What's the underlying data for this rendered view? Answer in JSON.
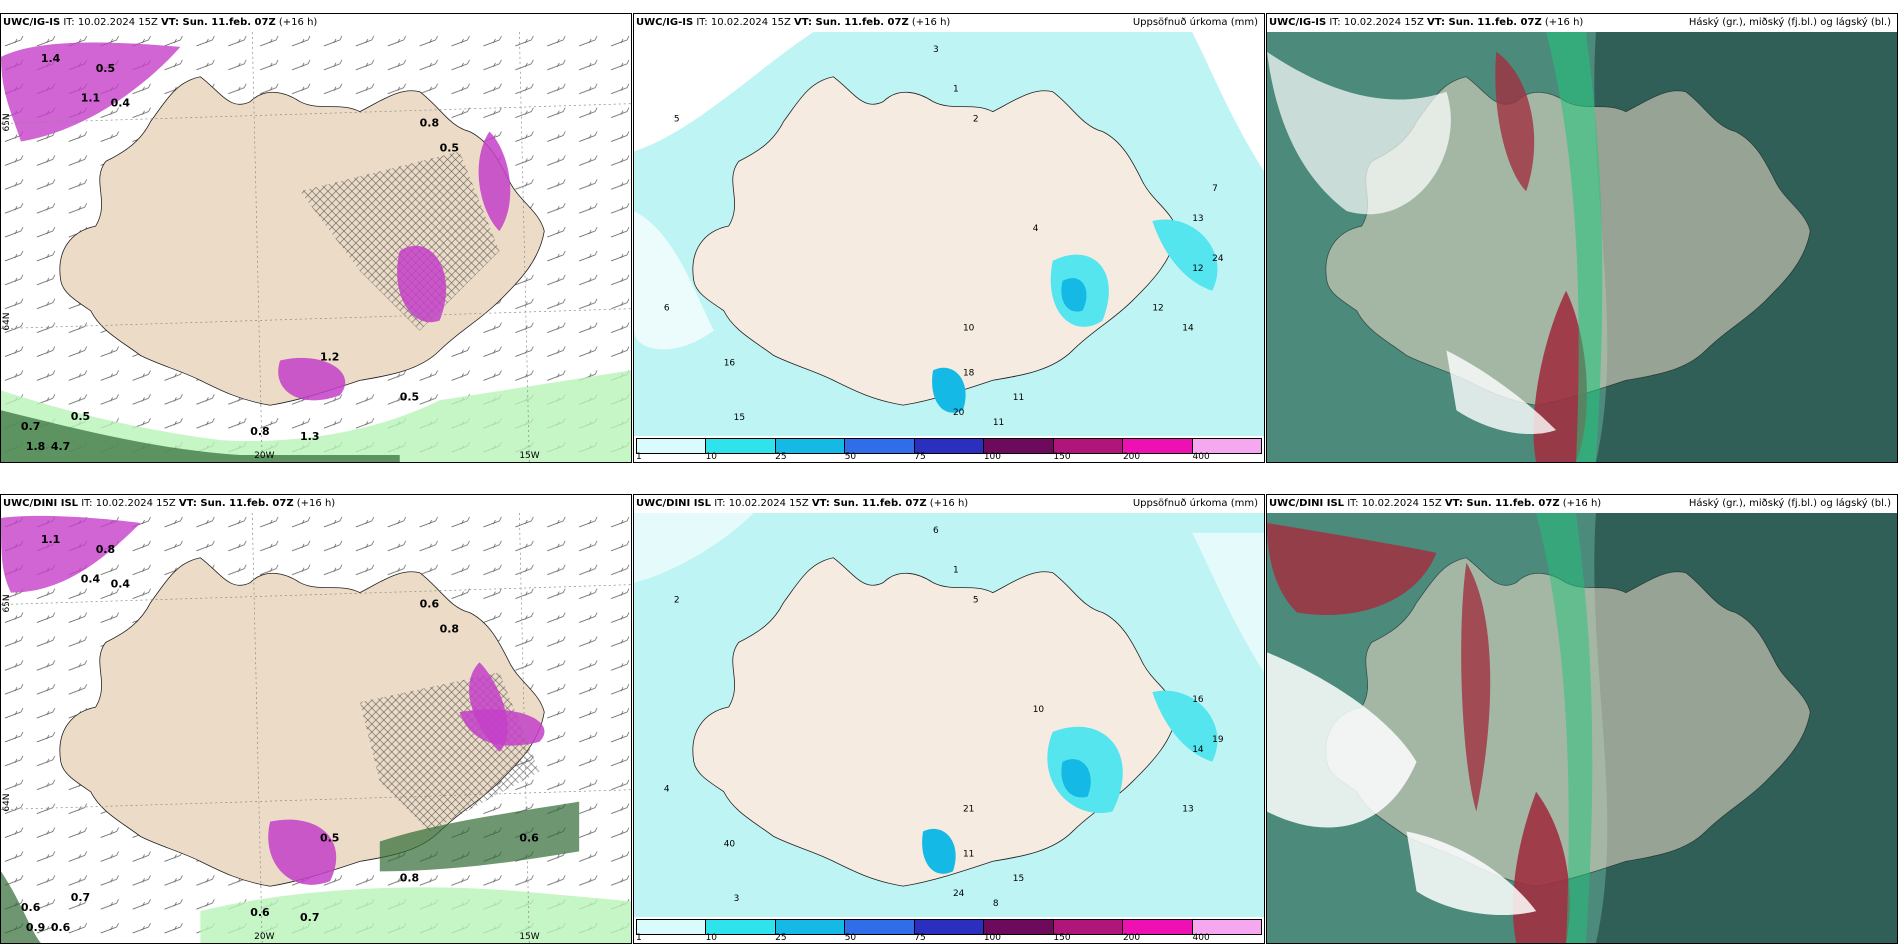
{
  "rows": [
    {
      "model": "UWC/IG-IS",
      "it_text": " IT: 10.02.2024 15Z ",
      "vt_label": "VT: Sun. 11.feb. 07Z",
      "lead": " (+16 h)"
    },
    {
      "model": "UWC/DINI ISL",
      "it_text": " IT: 10.02.2024 15Z ",
      "vt_label": "VT: Sun. 11.feb. 07Z",
      "lead": " (+16 h)"
    }
  ],
  "titles": {
    "precip": "Uppsöfnuð úrkoma (mm)",
    "clouds": "Háský (gr.), miðský (fj.bl.) og lágský (bl.)"
  },
  "axes": {
    "lon_left": "20W",
    "lon_right": "15W",
    "lat_top": "65N",
    "lat_bottom": "64N"
  },
  "colorbar": {
    "ticks": [
      "1",
      "10",
      "25",
      "50",
      "75",
      "100",
      "150",
      "200",
      "400"
    ],
    "colors": [
      "#d9fbfb",
      "#2fe3ec",
      "#14b9e6",
      "#2f6ee8",
      "#2a2fc0",
      "#6e0a5c",
      "#b0157a",
      "#ef10b4",
      "#f5a8f0"
    ]
  },
  "wind_labels": {
    "top": [
      "1.4",
      "1.1",
      "0.4",
      "0.5",
      "0.8",
      "0.5",
      "0.5",
      "1.3",
      "1.2",
      "0.8",
      "0.7",
      "1.8",
      "4.7",
      "0.5"
    ],
    "bottom": [
      "1.1",
      "0.4",
      "0.4",
      "0.8",
      "0.6",
      "0.8",
      "0.8",
      "0.7",
      "0.5",
      "0.6",
      "0.6",
      "0.9",
      "0.6",
      "0.7",
      "0.6"
    ]
  },
  "precip_labels": {
    "top": [
      "3",
      "1",
      "2",
      "5",
      "6",
      "4",
      "12",
      "14",
      "18",
      "20",
      "11",
      "24",
      "16",
      "15",
      "11",
      "13",
      "10",
      "12",
      "7"
    ],
    "bottom": [
      "6",
      "1",
      "5",
      "2",
      "4",
      "10",
      "14",
      "13",
      "11",
      "24",
      "15",
      "19",
      "40",
      "3",
      "8",
      "16",
      "21"
    ]
  },
  "colors": {
    "land": "#ecdcc7",
    "precip_land": "#f5ebe0",
    "sea_precip": "#bff4f4",
    "light_cyan": "#55e5ef",
    "magenta": "#c43fc8",
    "green_light": "#b8f2b8",
    "green_dark": "#2f6a35",
    "cloud_sea": "#4c8a7c",
    "cloud_dark": "#2f5f56",
    "cloud_red": "#a03040",
    "cloud_green": "#22c47a"
  }
}
